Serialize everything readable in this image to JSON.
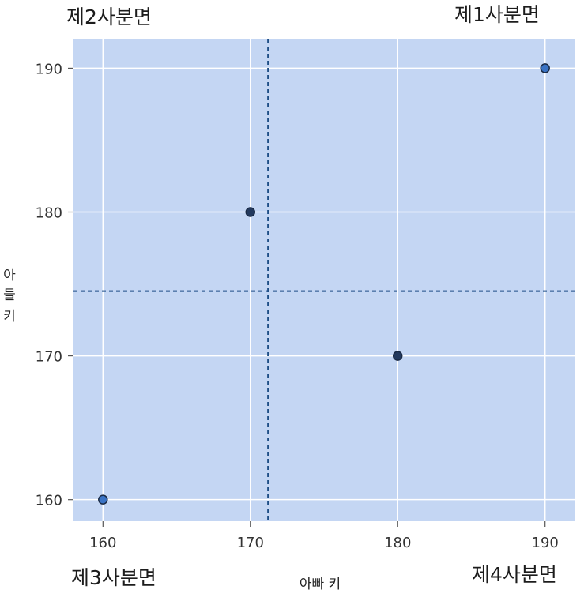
{
  "chart_data": {
    "type": "scatter",
    "xlabel": "아빠 키",
    "ylabel": [
      "아",
      "들",
      "키"
    ],
    "xlim": [
      158,
      192
    ],
    "ylim": [
      158.5,
      192
    ],
    "x_ticks": [
      160,
      170,
      180,
      190
    ],
    "y_ticks": [
      160,
      170,
      180,
      190
    ],
    "grid": true,
    "points": [
      {
        "x": 160,
        "y": 160,
        "color": "#3a73c4"
      },
      {
        "x": 170,
        "y": 180,
        "color": "#23395d"
      },
      {
        "x": 180,
        "y": 170,
        "color": "#23395d"
      },
      {
        "x": 190,
        "y": 190,
        "color": "#3a73c4"
      }
    ],
    "reference_lines": {
      "x_mean": 171.2,
      "y_mean": 174.5
    },
    "quadrant_labels": {
      "q1": "제1사분면",
      "q2": "제2사분면",
      "q3": "제3사분면",
      "q4": "제4사분면"
    },
    "colors": {
      "plot_background": "#c4d6f3",
      "grid": "#ffffff",
      "reference_line": "#1e4e86"
    }
  }
}
